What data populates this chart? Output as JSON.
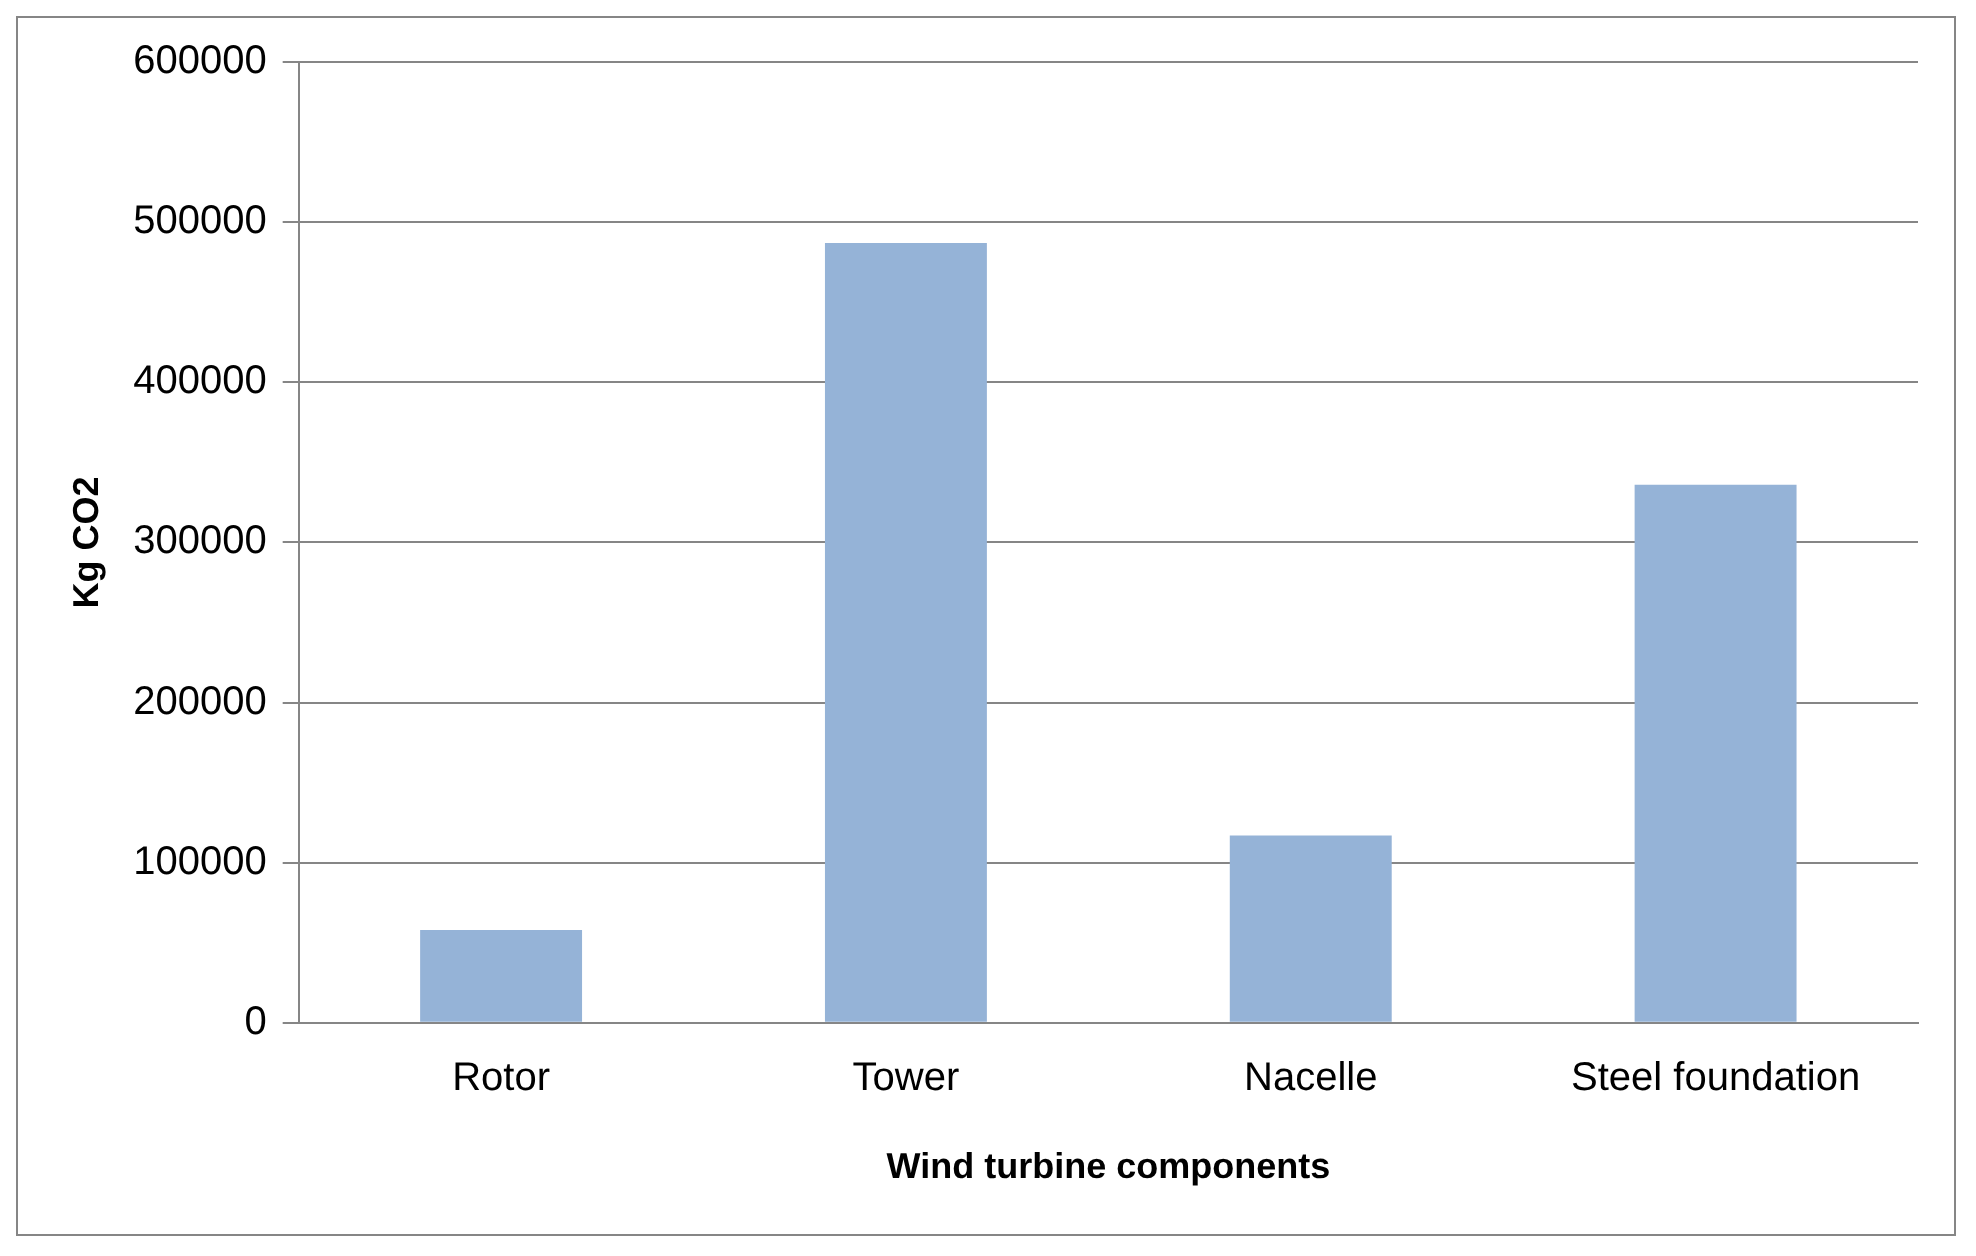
{
  "chart_data": {
    "type": "bar",
    "xlabel": "Wind turbine components",
    "ylabel": "Kg CO2",
    "categories": [
      "Rotor",
      "Tower",
      "Nacelle",
      "Steel foundation"
    ],
    "values": [
      58000,
      487000,
      117000,
      336000
    ],
    "color": "#95b3d7",
    "ylim": [
      0,
      600000
    ],
    "yticks": [
      0,
      100000,
      200000,
      300000,
      400000,
      500000,
      600000
    ],
    "grid": "y"
  }
}
